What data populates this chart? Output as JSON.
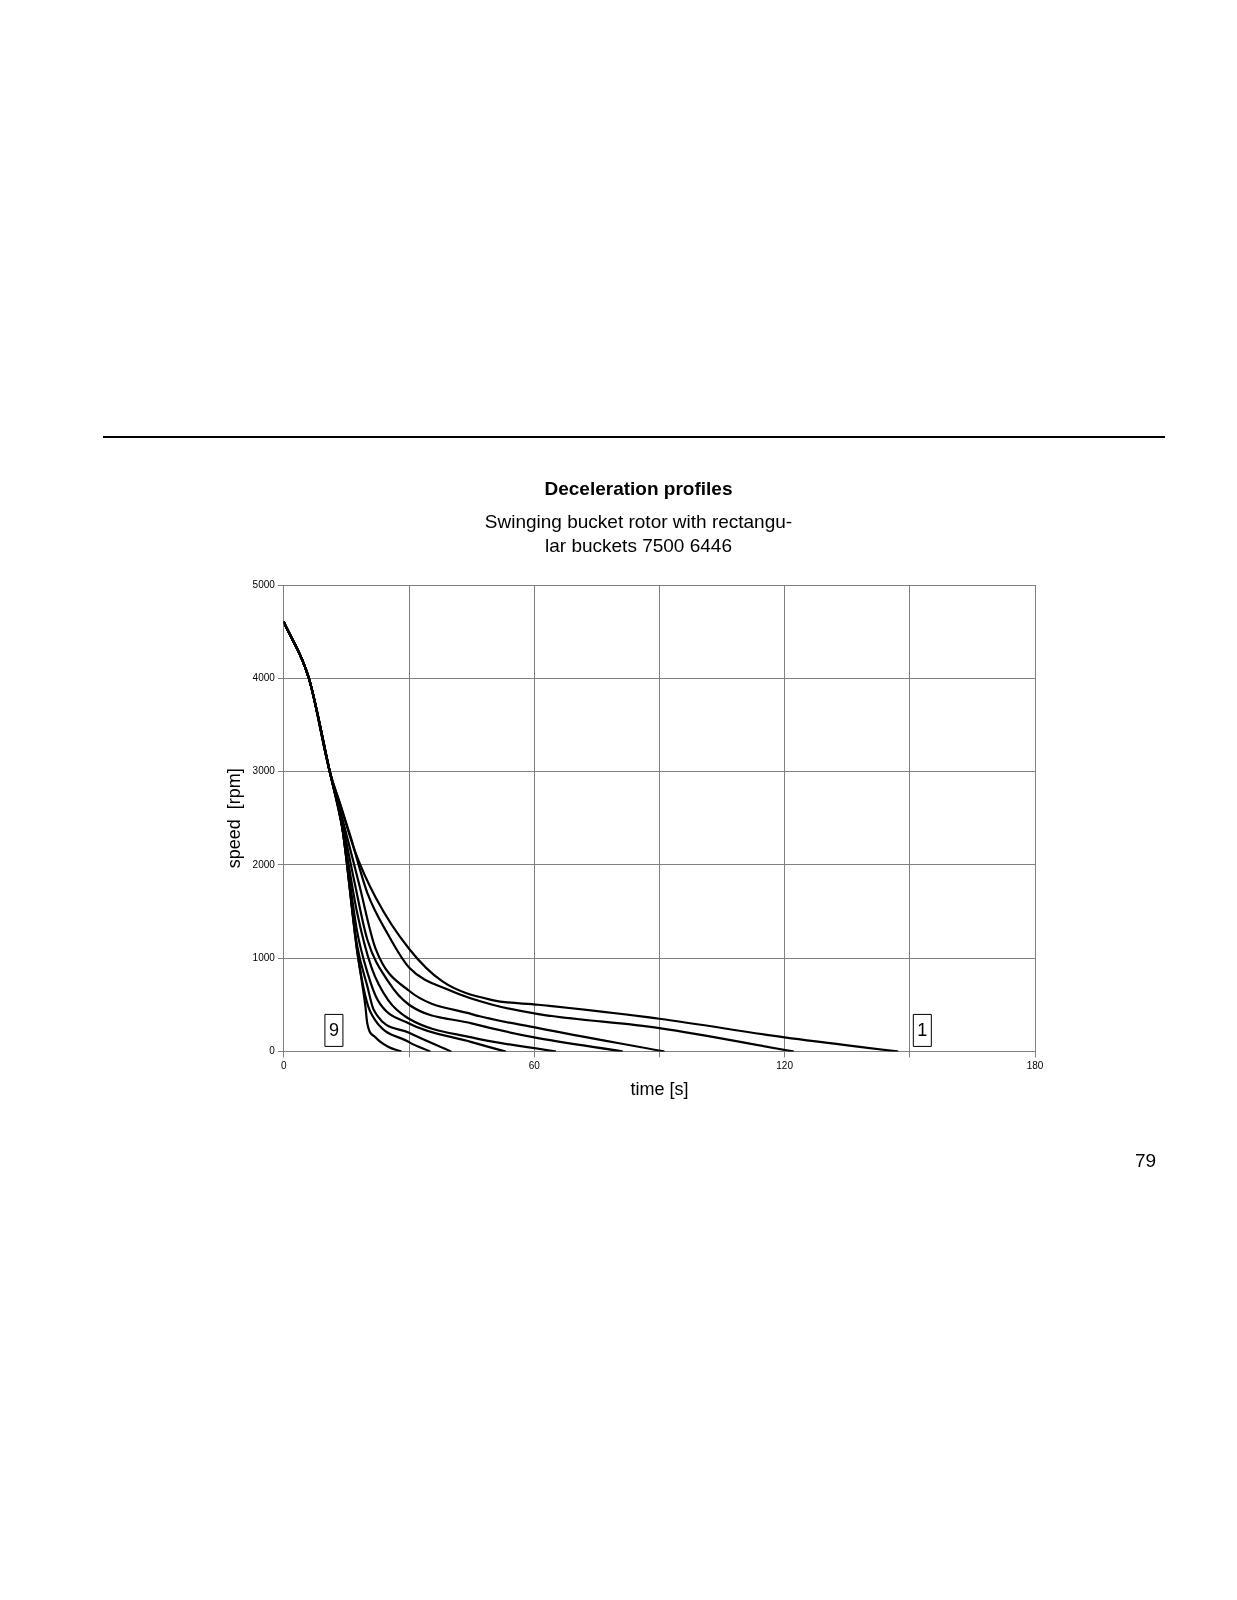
{
  "chart_data": {
    "type": "line",
    "title": "Deceleration profiles",
    "subtitle": "Swinging bucket rotor with rectangu-\nlar  buckets 7500 6446",
    "xlabel": "time [s]",
    "ylabel": "speed  [rpm]",
    "xlim": [
      0,
      180
    ],
    "xticks": [
      0,
      {
        "value": 30,
        "label": null
      },
      60,
      {
        "value": 90,
        "label": null
      },
      120,
      {
        "value": 150,
        "label": null
      },
      180
    ],
    "ylim": [
      0,
      5000
    ],
    "yticks": [
      0,
      1000,
      2000,
      3000,
      4000,
      5000
    ],
    "grid": true,
    "legend": false,
    "marker": "none",
    "line_style": "solid",
    "series": [
      {
        "color": "#000000",
        "x": [
          0,
          6,
          11,
          13.5,
          17,
          22,
          30,
          38,
          50,
          61,
          90,
          120,
          147
        ],
        "values": [
          4600,
          4000,
          3000,
          2650,
          2150,
          1650,
          1100,
          750,
          550,
          500,
          350,
          150,
          0
        ]
      },
      {
        "color": "#000000",
        "x": [
          0,
          6,
          11,
          13.5,
          16,
          20,
          25,
          30,
          40,
          50,
          61,
          90,
          122
        ],
        "values": [
          4600,
          4000,
          3000,
          2650,
          2300,
          1700,
          1250,
          900,
          650,
          500,
          400,
          250,
          0
        ]
      },
      {
        "color": "#000000",
        "x": [
          0,
          6,
          11,
          14,
          18,
          22,
          30,
          45,
          61,
          91
        ],
        "values": [
          4600,
          4000,
          3000,
          2500,
          1800,
          1100,
          650,
          400,
          250,
          0
        ]
      },
      {
        "color": "#000000",
        "x": [
          0,
          6,
          11,
          14,
          17,
          20,
          25,
          30,
          45,
          60,
          81
        ],
        "values": [
          4600,
          4000,
          3000,
          2450,
          1800,
          1200,
          750,
          500,
          300,
          150,
          0
        ]
      },
      {
        "color": "#000000",
        "x": [
          0,
          6,
          11,
          14,
          17.5,
          21,
          25,
          30,
          45,
          65
        ],
        "values": [
          4600,
          4000,
          3000,
          2400,
          1500,
          900,
          550,
          350,
          150,
          0
        ]
      },
      {
        "color": "#000000",
        "x": [
          0,
          6,
          11,
          14,
          17.5,
          20,
          22.5,
          30,
          45,
          53
        ],
        "values": [
          4600,
          4000,
          3000,
          2400,
          1300,
          850,
          550,
          300,
          100,
          0
        ]
      },
      {
        "color": "#000000",
        "x": [
          0,
          6,
          11,
          14,
          17.5,
          20,
          21.5,
          30,
          40
        ],
        "values": [
          4600,
          4000,
          3000,
          2400,
          1150,
          700,
          450,
          200,
          0
        ]
      },
      {
        "color": "#000000",
        "x": [
          0,
          6,
          11,
          14,
          17.5,
          19.5,
          21,
          30,
          35
        ],
        "values": [
          4600,
          4000,
          3000,
          2400,
          1100,
          600,
          400,
          100,
          0
        ]
      },
      {
        "color": "#000000",
        "x": [
          0,
          6,
          11,
          14,
          17.5,
          19.5,
          20,
          22,
          25,
          28
        ],
        "values": [
          4600,
          4000,
          3000,
          2400,
          1100,
          500,
          300,
          150,
          50,
          0
        ]
      }
    ],
    "annotations": [
      {
        "text": "9",
        "x": 12,
        "y": 225
      },
      {
        "text": "1",
        "x": 153,
        "y": 225
      },
      "79"
    ]
  }
}
